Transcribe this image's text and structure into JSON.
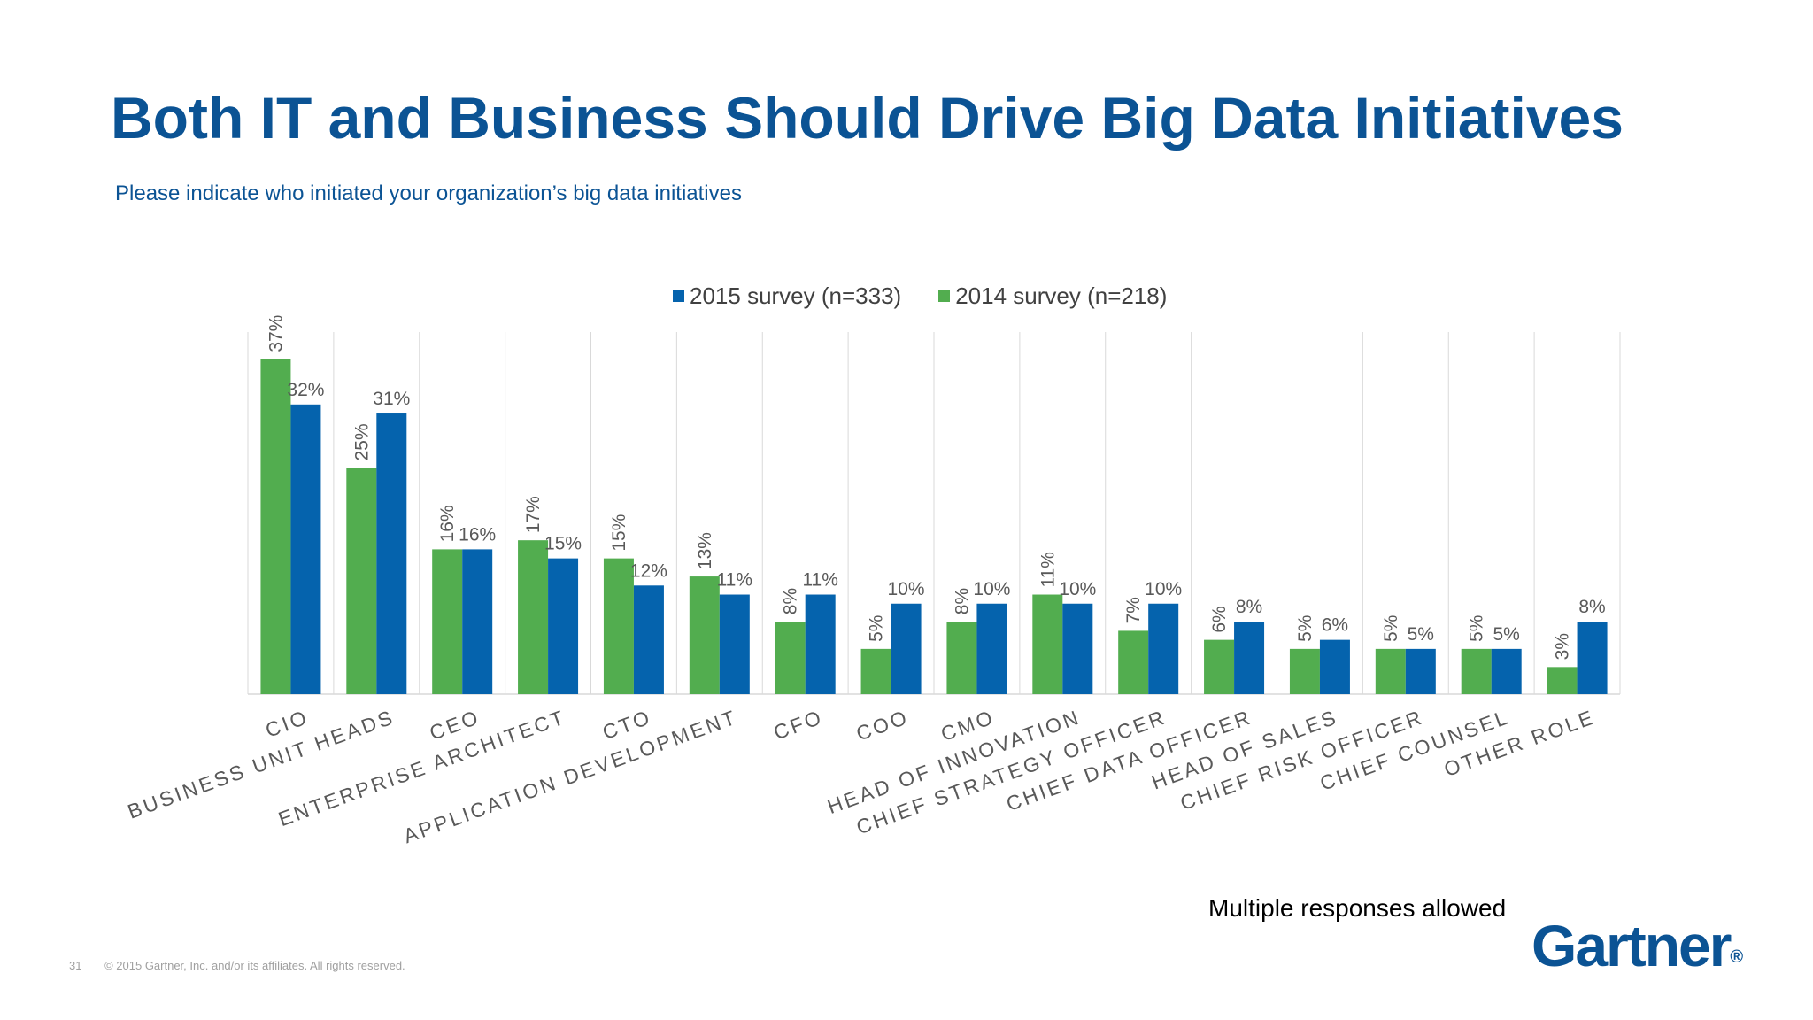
{
  "title": "Both IT and Business Should Drive Big Data Initiatives",
  "subtitle": "Please indicate who initiated your organization’s big data initiatives",
  "note": "Multiple responses allowed",
  "footer": {
    "page_number": "31",
    "copyright": "© 2015 Gartner, Inc. and/or its affiliates. All rights reserved."
  },
  "logo": {
    "text": "Gartner",
    "mark": "®"
  },
  "colors": {
    "series_2015": "#0563ad",
    "series_2014": "#52ad4f",
    "title": "#0b5394"
  },
  "chart_data": {
    "type": "bar",
    "title": "",
    "xlabel": "",
    "ylabel": "",
    "ylim": [
      0,
      40
    ],
    "grid": "vertical",
    "legend_position": "top-center",
    "categories": [
      "CIO",
      "BUSINESS UNIT HEADS",
      "CEO",
      "ENTERPRISE ARCHITECT",
      "CTO",
      "APPLICATION DEVELOPMENT",
      "CFO",
      "COO",
      "CMO",
      "HEAD OF INNOVATION",
      "CHIEF STRATEGY OFFICER",
      "CHIEF DATA OFFICER",
      "HEAD OF SALES",
      "CHIEF RISK OFFICER",
      "CHIEF COUNSEL",
      "OTHER ROLE"
    ],
    "series": [
      {
        "name": "2014 survey (n=218)",
        "values": [
          37,
          25,
          16,
          17,
          15,
          13,
          8,
          5,
          8,
          11,
          7,
          6,
          5,
          5,
          5,
          3
        ],
        "labels": [
          "37%",
          "25%",
          "16%",
          "17%",
          "15%",
          "13%",
          "8%",
          "5%",
          "8%",
          "11%",
          "7%",
          "6%",
          "5%",
          "5%",
          "5%",
          "3%"
        ]
      },
      {
        "name": "2015 survey (n=333)",
        "values": [
          32,
          31,
          16,
          15,
          12,
          11,
          11,
          10,
          10,
          10,
          10,
          8,
          6,
          5,
          5,
          8
        ],
        "labels": [
          "32%",
          "31%",
          "16%",
          "15%",
          "12%",
          "11%",
          "11%",
          "10%",
          "10%",
          "10%",
          "10%",
          "8%",
          "6%",
          "5%",
          "5%",
          "8%"
        ]
      }
    ]
  }
}
